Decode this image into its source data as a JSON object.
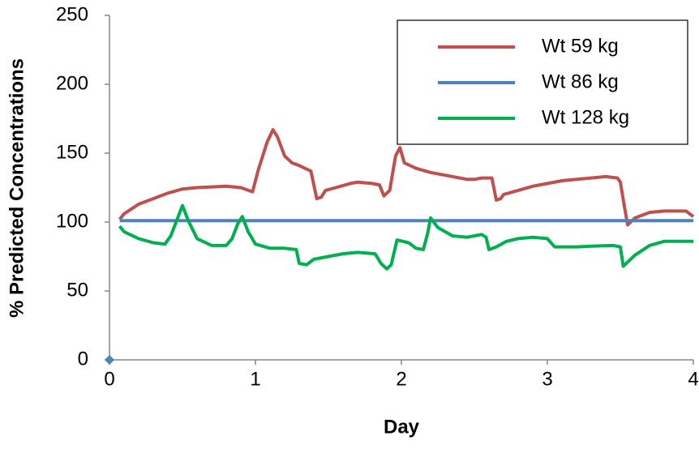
{
  "chart_data": {
    "type": "line",
    "xlabel": "Day",
    "ylabel": "% Predicted Concentrations",
    "xlim": [
      0,
      4
    ],
    "ylim": [
      0,
      250
    ],
    "xticks": [
      0,
      1,
      2,
      3,
      4
    ],
    "yticks": [
      0,
      50,
      100,
      150,
      200,
      250
    ],
    "grid": false,
    "legend": "upper right",
    "series": [
      {
        "name": "Wt 59 kg",
        "color": "#c0504d",
        "x": [
          0.07,
          0.1,
          0.2,
          0.3,
          0.4,
          0.5,
          0.6,
          0.7,
          0.8,
          0.9,
          0.98,
          1.02,
          1.08,
          1.12,
          1.15,
          1.2,
          1.25,
          1.3,
          1.38,
          1.42,
          1.45,
          1.48,
          1.55,
          1.65,
          1.7,
          1.8,
          1.85,
          1.88,
          1.92,
          1.96,
          1.99,
          2.02,
          2.1,
          2.2,
          2.3,
          2.4,
          2.45,
          2.5,
          2.55,
          2.62,
          2.65,
          2.68,
          2.7,
          2.8,
          2.9,
          3.0,
          3.1,
          3.2,
          3.3,
          3.4,
          3.48,
          3.5,
          3.53,
          3.55,
          3.6,
          3.7,
          3.8,
          3.9,
          3.95,
          4.0
        ],
        "values": [
          102,
          106,
          113,
          117,
          121,
          124,
          125,
          125.5,
          126,
          125,
          122,
          138,
          158,
          167,
          162,
          148,
          143,
          141,
          137,
          117,
          118,
          123,
          125,
          128,
          129,
          128,
          127,
          119,
          123,
          148,
          154,
          143,
          139,
          136,
          134,
          132,
          131,
          131,
          132,
          132,
          116,
          117,
          120,
          123,
          126,
          128,
          130,
          131,
          132,
          133,
          132,
          129,
          110,
          98,
          103,
          107,
          108,
          108,
          108,
          104
        ]
      },
      {
        "name": "Wt 86 kg",
        "color": "#4f81bd",
        "x": [
          0.07,
          4.0
        ],
        "values": [
          101,
          101
        ]
      },
      {
        "name": "Wt 128 kg",
        "color": "#00b050",
        "x": [
          0.07,
          0.1,
          0.2,
          0.3,
          0.38,
          0.42,
          0.46,
          0.5,
          0.54,
          0.6,
          0.7,
          0.8,
          0.84,
          0.88,
          0.91,
          0.95,
          1.0,
          1.1,
          1.2,
          1.28,
          1.3,
          1.35,
          1.4,
          1.5,
          1.6,
          1.7,
          1.82,
          1.86,
          1.9,
          1.93,
          1.97,
          2.05,
          2.1,
          2.15,
          2.18,
          2.2,
          2.25,
          2.35,
          2.45,
          2.55,
          2.58,
          2.6,
          2.65,
          2.72,
          2.8,
          2.9,
          3.0,
          3.05,
          3.2,
          3.3,
          3.45,
          3.5,
          3.52,
          3.55,
          3.6,
          3.7,
          3.8,
          3.9,
          4.0
        ],
        "values": [
          97,
          93,
          88,
          85,
          84,
          90,
          101,
          112,
          101,
          88,
          83,
          83,
          88,
          99,
          104,
          93,
          84,
          81,
          81,
          80,
          70,
          69,
          73,
          75,
          77,
          78,
          77,
          70,
          66,
          69,
          87,
          85,
          81,
          80,
          92,
          103,
          96,
          90,
          89,
          91,
          89,
          80,
          82,
          86,
          88,
          89,
          88,
          82,
          82,
          82.5,
          83,
          82,
          68,
          71,
          76,
          83,
          86,
          86,
          86
        ]
      },
      {
        "color": "#4f81bd",
        "marker": "diamond",
        "x": [
          0
        ],
        "values": [
          0
        ]
      }
    ]
  }
}
